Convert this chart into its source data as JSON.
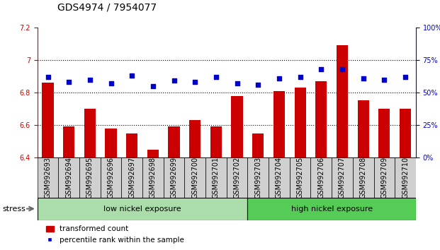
{
  "title": "GDS4974 / 7954077",
  "samples": [
    "GSM992693",
    "GSM992694",
    "GSM992695",
    "GSM992696",
    "GSM992697",
    "GSM992698",
    "GSM992699",
    "GSM992700",
    "GSM992701",
    "GSM992702",
    "GSM992703",
    "GSM992704",
    "GSM992705",
    "GSM992706",
    "GSM992707",
    "GSM992708",
    "GSM992709",
    "GSM992710"
  ],
  "bar_values": [
    6.86,
    6.59,
    6.7,
    6.58,
    6.55,
    6.45,
    6.59,
    6.63,
    6.59,
    6.78,
    6.55,
    6.81,
    6.83,
    6.87,
    7.09,
    6.75,
    6.7,
    6.7
  ],
  "dot_values": [
    62,
    58,
    60,
    57,
    63,
    55,
    59,
    58,
    62,
    57,
    56,
    61,
    62,
    68,
    68,
    61,
    60,
    62
  ],
  "bar_color": "#cc0000",
  "dot_color": "#0000cc",
  "ylim_left": [
    6.4,
    7.2
  ],
  "ylim_right": [
    0,
    100
  ],
  "yticks_left": [
    6.4,
    6.6,
    6.8,
    7.0,
    7.2
  ],
  "ytick_labels_left": [
    "6.4",
    "6.6",
    "6.8",
    "7",
    "7.2"
  ],
  "yticks_right": [
    0,
    25,
    50,
    75,
    100
  ],
  "ytick_labels_right": [
    "0%",
    "25%",
    "50%",
    "75%",
    "100%"
  ],
  "grid_values": [
    6.6,
    6.8,
    7.0
  ],
  "bar_bottom": 6.4,
  "groups": [
    {
      "label": "low nickel exposure",
      "start": 0,
      "end": 9,
      "color": "#aaddaa"
    },
    {
      "label": "high nickel exposure",
      "start": 10,
      "end": 17,
      "color": "#55cc55"
    }
  ],
  "stress_label": "stress",
  "legend_bar_label": "transformed count",
  "legend_dot_label": "percentile rank within the sample",
  "title_fontsize": 10,
  "tick_fontsize": 7,
  "label_fontsize": 8,
  "bar_width": 0.55,
  "fig_width": 6.21,
  "fig_height": 3.54
}
